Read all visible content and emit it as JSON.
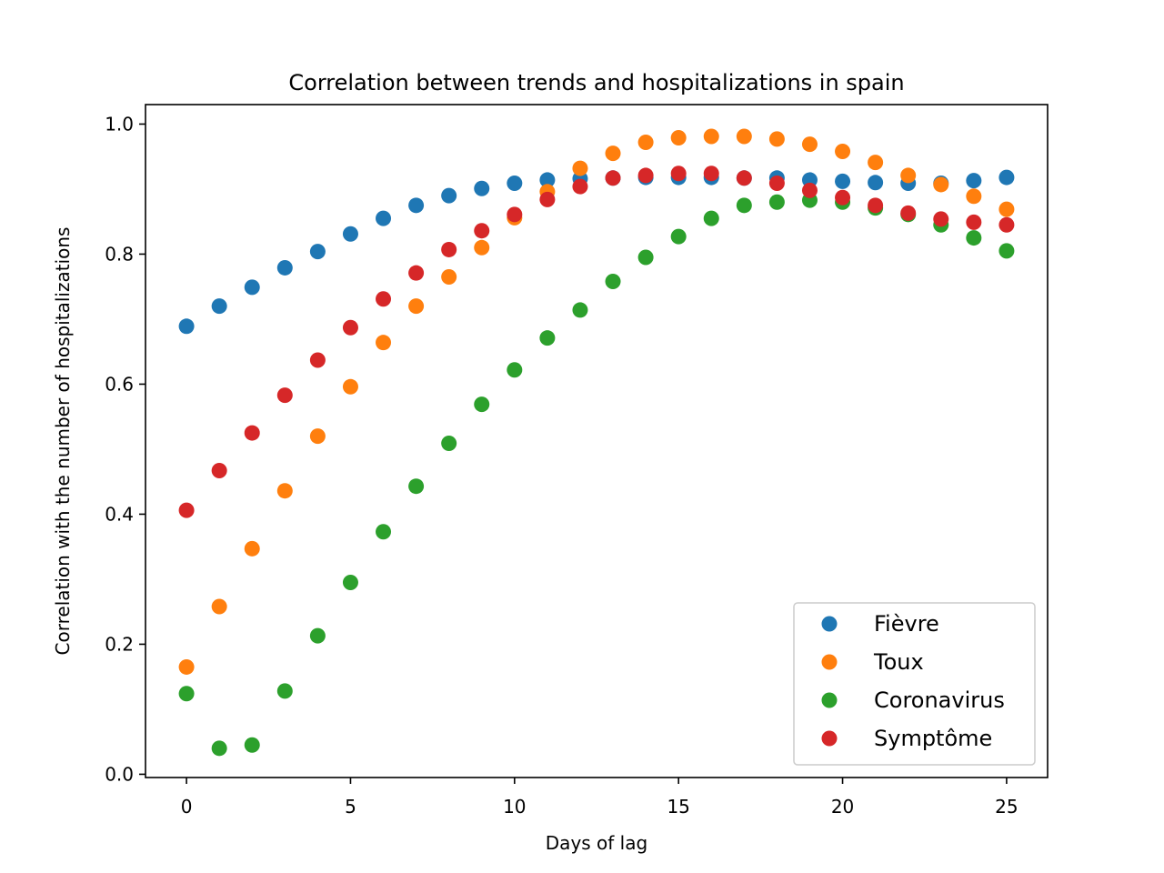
{
  "chart_data": {
    "type": "scatter",
    "title": "Correlation between trends and hospitalizations in spain",
    "xlabel": "Days of lag",
    "ylabel": "Correlation with the number of hospitalizations",
    "xlim": [
      -1.25,
      26.25
    ],
    "ylim": [
      -0.005,
      1.03
    ],
    "xticks": [
      0,
      5,
      10,
      15,
      20,
      25
    ],
    "yticks": [
      0.0,
      0.2,
      0.4,
      0.6,
      0.8,
      1.0
    ],
    "xtick_labels": [
      "0",
      "5",
      "10",
      "15",
      "20",
      "25"
    ],
    "ytick_labels": [
      "0.0",
      "0.2",
      "0.4",
      "0.6",
      "0.8",
      "1.0"
    ],
    "grid": false,
    "legend_position": "bottom-right",
    "x": [
      0,
      1,
      2,
      3,
      4,
      5,
      6,
      7,
      8,
      9,
      10,
      11,
      12,
      13,
      14,
      15,
      16,
      17,
      18,
      19,
      20,
      21,
      22,
      23,
      24,
      25
    ],
    "series": [
      {
        "name": "Fièvre",
        "color": "#1f77b4",
        "values": [
          0.689,
          0.72,
          0.749,
          0.779,
          0.804,
          0.831,
          0.855,
          0.875,
          0.89,
          0.901,
          0.909,
          0.914,
          0.916,
          0.917,
          0.918,
          0.918,
          0.918,
          0.917,
          0.917,
          0.914,
          0.912,
          0.91,
          0.909,
          0.909,
          0.913,
          0.918
        ]
      },
      {
        "name": "Toux",
        "color": "#ff7f0e",
        "values": [
          0.165,
          0.258,
          0.347,
          0.436,
          0.52,
          0.596,
          0.664,
          0.72,
          0.765,
          0.81,
          0.856,
          0.896,
          0.932,
          0.955,
          0.972,
          0.979,
          0.981,
          0.981,
          0.977,
          0.969,
          0.958,
          0.941,
          0.921,
          0.907,
          0.889,
          0.869
        ]
      },
      {
        "name": "Coronavirus",
        "color": "#2ca02c",
        "values": [
          0.124,
          0.04,
          0.045,
          0.128,
          0.213,
          0.295,
          0.373,
          0.443,
          0.509,
          0.569,
          0.622,
          0.671,
          0.714,
          0.758,
          0.795,
          0.827,
          0.855,
          0.875,
          0.88,
          0.883,
          0.88,
          0.871,
          0.861,
          0.845,
          0.825,
          0.805
        ]
      },
      {
        "name": "Symptôme",
        "color": "#d62728",
        "values": [
          0.406,
          0.467,
          0.525,
          0.583,
          0.637,
          0.687,
          0.731,
          0.771,
          0.807,
          0.836,
          0.861,
          0.884,
          0.904,
          0.917,
          0.921,
          0.924,
          0.924,
          0.917,
          0.909,
          0.898,
          0.887,
          0.875,
          0.863,
          0.854,
          0.849,
          0.845
        ]
      }
    ]
  }
}
